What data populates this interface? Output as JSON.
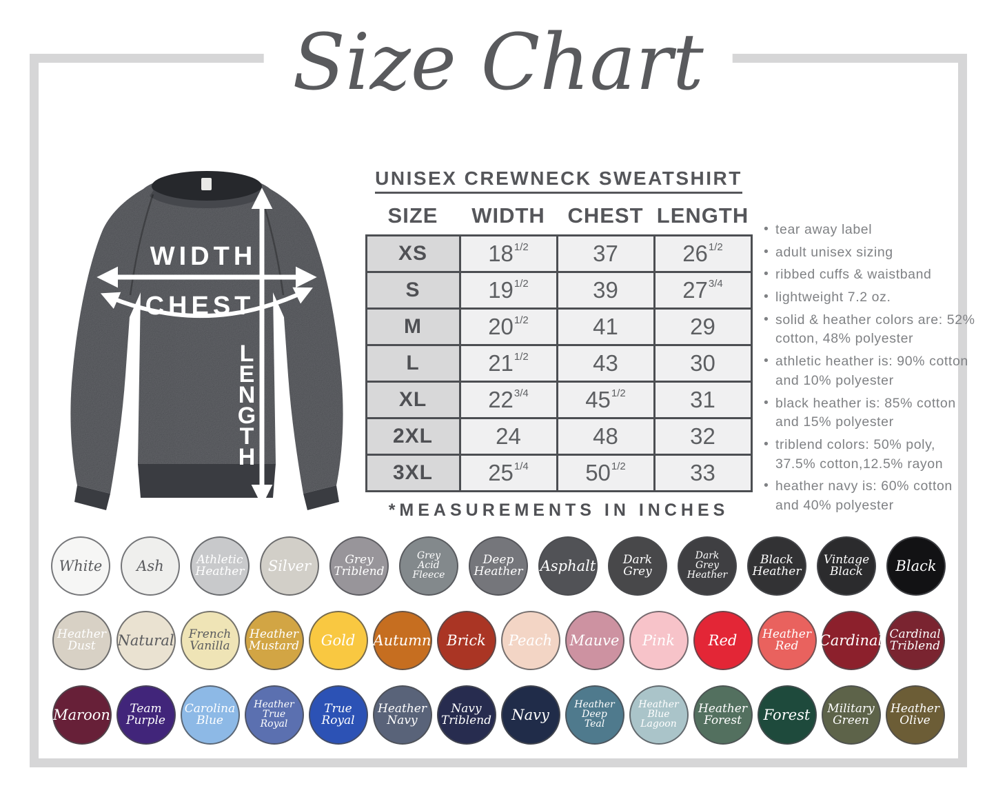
{
  "title": "Size Chart",
  "product": {
    "heading": "UNISEX CREWNECK SWEATSHIRT",
    "footnote": "*MEASUREMENTS IN INCHES"
  },
  "diagram": {
    "width_label": "WIDTH",
    "chest_label": "CHEST",
    "length_label": "LENGTH"
  },
  "size_table": {
    "columns": [
      "SIZE",
      "WIDTH",
      "CHEST",
      "LENGTH"
    ],
    "rows": [
      {
        "size": "XS",
        "width": "18 1/2",
        "chest": "37",
        "length": "26 1/2"
      },
      {
        "size": "S",
        "width": "19 1/2",
        "chest": "39",
        "length": "27 3/4"
      },
      {
        "size": "M",
        "width": "20 1/2",
        "chest": "41",
        "length": "29"
      },
      {
        "size": "L",
        "width": "21 1/2",
        "chest": "43",
        "length": "30"
      },
      {
        "size": "XL",
        "width": "22 3/4",
        "chest": "45 1/2",
        "length": "31"
      },
      {
        "size": "2XL",
        "width": "24",
        "chest": "48",
        "length": "32"
      },
      {
        "size": "3XL",
        "width": "25 1/4",
        "chest": "50 1/2",
        "length": "33"
      }
    ]
  },
  "features": [
    "tear away label",
    "adult unisex sizing",
    "ribbed cuffs & waistband",
    "lightweight 7.2 oz.",
    "solid & heather colors are: 52% cotton, 48% polyester",
    "athletic heather is: 90% cotton and 10% polyester",
    "black heather is: 85% cotton and 15% polyester",
    "triblend colors: 50% poly, 37.5% cotton,12.5% rayon",
    "heather navy is: 60% cotton and 40% polyester"
  ],
  "color_swatches": {
    "rows": [
      [
        {
          "name": "White",
          "hex": "#f6f6f5",
          "ink": "#5a5b5e"
        },
        {
          "name": "Ash",
          "hex": "#efefed",
          "ink": "#5a5b5e"
        },
        {
          "name": "Athletic Heather",
          "hex": "#c8c9cb",
          "ink": "#ffffff"
        },
        {
          "name": "Silver",
          "hex": "#d2cfc8",
          "ink": "#ffffff"
        },
        {
          "name": "Grey Triblend",
          "hex": "#98959a",
          "ink": "#ffffff"
        },
        {
          "name": "Grey Acid Fleece",
          "hex": "#83898c",
          "ink": "#ffffff"
        },
        {
          "name": "Deep Heather",
          "hex": "#75767b",
          "ink": "#ffffff"
        },
        {
          "name": "Asphalt",
          "hex": "#515256",
          "ink": "#ffffff"
        },
        {
          "name": "Dark Grey",
          "hex": "#48484a",
          "ink": "#ffffff"
        },
        {
          "name": "Dark Grey Heather",
          "hex": "#3f3f42",
          "ink": "#ffffff"
        },
        {
          "name": "Black Heather",
          "hex": "#323234",
          "ink": "#ffffff"
        },
        {
          "name": "Vintage Black",
          "hex": "#2b2b2d",
          "ink": "#ffffff"
        },
        {
          "name": "Black",
          "hex": "#121214",
          "ink": "#ffffff"
        }
      ],
      [
        {
          "name": "Heather Dust",
          "hex": "#d8d1c5",
          "ink": "#ffffff"
        },
        {
          "name": "Natural",
          "hex": "#eae2d1",
          "ink": "#5a5b5e"
        },
        {
          "name": "French Vanilla",
          "hex": "#efe4b6",
          "ink": "#5a5b5e"
        },
        {
          "name": "Heather Mustard",
          "hex": "#d2a544",
          "ink": "#ffffff"
        },
        {
          "name": "Gold",
          "hex": "#f9c841",
          "ink": "#ffffff"
        },
        {
          "name": "Autumn",
          "hex": "#c66e20",
          "ink": "#ffffff"
        },
        {
          "name": "Brick",
          "hex": "#aa3524",
          "ink": "#ffffff"
        },
        {
          "name": "Peach",
          "hex": "#f3d5c5",
          "ink": "#ffffff"
        },
        {
          "name": "Mauve",
          "hex": "#cd92a1",
          "ink": "#ffffff"
        },
        {
          "name": "Pink",
          "hex": "#f7c3c9",
          "ink": "#ffffff"
        },
        {
          "name": "Red",
          "hex": "#e32636",
          "ink": "#ffffff"
        },
        {
          "name": "Heather Red",
          "hex": "#e9625e",
          "ink": "#ffffff"
        },
        {
          "name": "Cardinal",
          "hex": "#8c202c",
          "ink": "#ffffff"
        },
        {
          "name": "Cardinal Triblend",
          "hex": "#7a2430",
          "ink": "#ffffff"
        }
      ],
      [
        {
          "name": "Maroon",
          "hex": "#672038",
          "ink": "#ffffff"
        },
        {
          "name": "Team Purple",
          "hex": "#41257a",
          "ink": "#ffffff"
        },
        {
          "name": "Carolina Blue",
          "hex": "#8db9e6",
          "ink": "#ffffff"
        },
        {
          "name": "Heather True Royal",
          "hex": "#5b70b0",
          "ink": "#ffffff"
        },
        {
          "name": "True Royal",
          "hex": "#2c52b5",
          "ink": "#ffffff"
        },
        {
          "name": "Heather Navy",
          "hex": "#596379",
          "ink": "#ffffff"
        },
        {
          "name": "Navy Triblend",
          "hex": "#272c4f",
          "ink": "#ffffff"
        },
        {
          "name": "Navy",
          "hex": "#202c49",
          "ink": "#ffffff"
        },
        {
          "name": "Heather Deep Teal",
          "hex": "#4f7a8d",
          "ink": "#ffffff"
        },
        {
          "name": "Heather Blue Lagoon",
          "hex": "#aac4c9",
          "ink": "#ffffff"
        },
        {
          "name": "Heather Forest",
          "hex": "#53705f",
          "ink": "#ffffff"
        },
        {
          "name": "Forest",
          "hex": "#1e4a3c",
          "ink": "#ffffff"
        },
        {
          "name": "Military Green",
          "hex": "#5d6349",
          "ink": "#ffffff"
        },
        {
          "name": "Heather Olive",
          "hex": "#6c5d36",
          "ink": "#ffffff"
        }
      ]
    ]
  },
  "palette": {
    "heading_text": "#55565a",
    "frame_border": "#d6d6d7",
    "table_border": "#4c4e52",
    "size_column_bg": "#d8d8d9",
    "value_cell_bg": "#f0f0f1",
    "bullet_text": "#7f8184",
    "shirt_body": "#3f4146"
  }
}
